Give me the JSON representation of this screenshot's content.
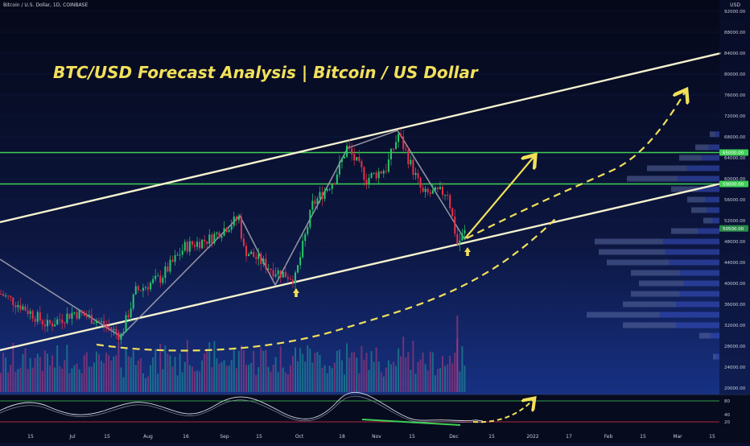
{
  "header": {
    "symbol_line": "Bitcoin / U.S. Dollar, 1D, COINBASE",
    "currency": "USD"
  },
  "chart_data": {
    "type": "candlestick",
    "title": "BTC/USD Forecast Analysis | Bitcoin / US Dollar",
    "y_axis": {
      "ticks": [
        92000,
        88000,
        84000,
        80000,
        76000,
        72000,
        68000,
        64000,
        60000,
        56000,
        52000,
        48000,
        44000,
        40000,
        36000,
        32000,
        28000,
        24000,
        20000
      ],
      "tick_labels": [
        "92000.00",
        "88000.00",
        "84000.00",
        "80000.00",
        "76000.00",
        "72000.00",
        "68000.00",
        "64000.00",
        "60000.00",
        "56000.00",
        "52000.00",
        "48000.00",
        "44000.00",
        "40000.00",
        "36000.00",
        "32000.00",
        "28000.00",
        "24000.00",
        "20000.00"
      ],
      "price_labels": [
        {
          "value": 65000,
          "label": "65000.00",
          "color": "#3fcf55"
        },
        {
          "value": 59000,
          "label": "59000.00",
          "color": "#3fcf55"
        },
        {
          "value": 50500,
          "label": "50500.00",
          "color": "#2a8a4a"
        }
      ]
    },
    "x_axis": {
      "tick_labels": [
        "15",
        "Jul",
        "15",
        "Aug",
        "16",
        "Sep",
        "15",
        "Oct",
        "18",
        "Nov",
        "15",
        "Dec",
        "15",
        "2022",
        "17",
        "Feb",
        "15",
        "Mar",
        "15"
      ]
    },
    "price_path": [
      [
        "2021-06-01",
        38000
      ],
      [
        "2021-06-10",
        35500
      ],
      [
        "2021-06-20",
        32000
      ],
      [
        "2021-07-01",
        34500
      ],
      [
        "2021-07-10",
        33000
      ],
      [
        "2021-07-20",
        30000
      ],
      [
        "2021-07-26",
        38500
      ],
      [
        "2021-08-05",
        41000
      ],
      [
        "2021-08-15",
        47000
      ],
      [
        "2021-08-25",
        48500
      ],
      [
        "2021-09-06",
        52500
      ],
      [
        "2021-09-08",
        46500
      ],
      [
        "2021-09-20",
        42500
      ],
      [
        "2021-09-29",
        41000
      ],
      [
        "2021-10-06",
        55000
      ],
      [
        "2021-10-15",
        60000
      ],
      [
        "2021-10-20",
        66000
      ],
      [
        "2021-10-28",
        60000
      ],
      [
        "2021-11-05",
        62000
      ],
      [
        "2021-11-10",
        68500
      ],
      [
        "2021-11-20",
        57000
      ],
      [
        "2021-11-30",
        57500
      ],
      [
        "2021-12-04",
        47500
      ],
      [
        "2021-12-08",
        50500
      ]
    ],
    "horizontal_levels": [
      65000,
      59000
    ],
    "oscillator": {
      "levels": [
        80,
        40,
        20
      ],
      "tick_labels": [
        "80",
        "40",
        "20"
      ]
    }
  }
}
